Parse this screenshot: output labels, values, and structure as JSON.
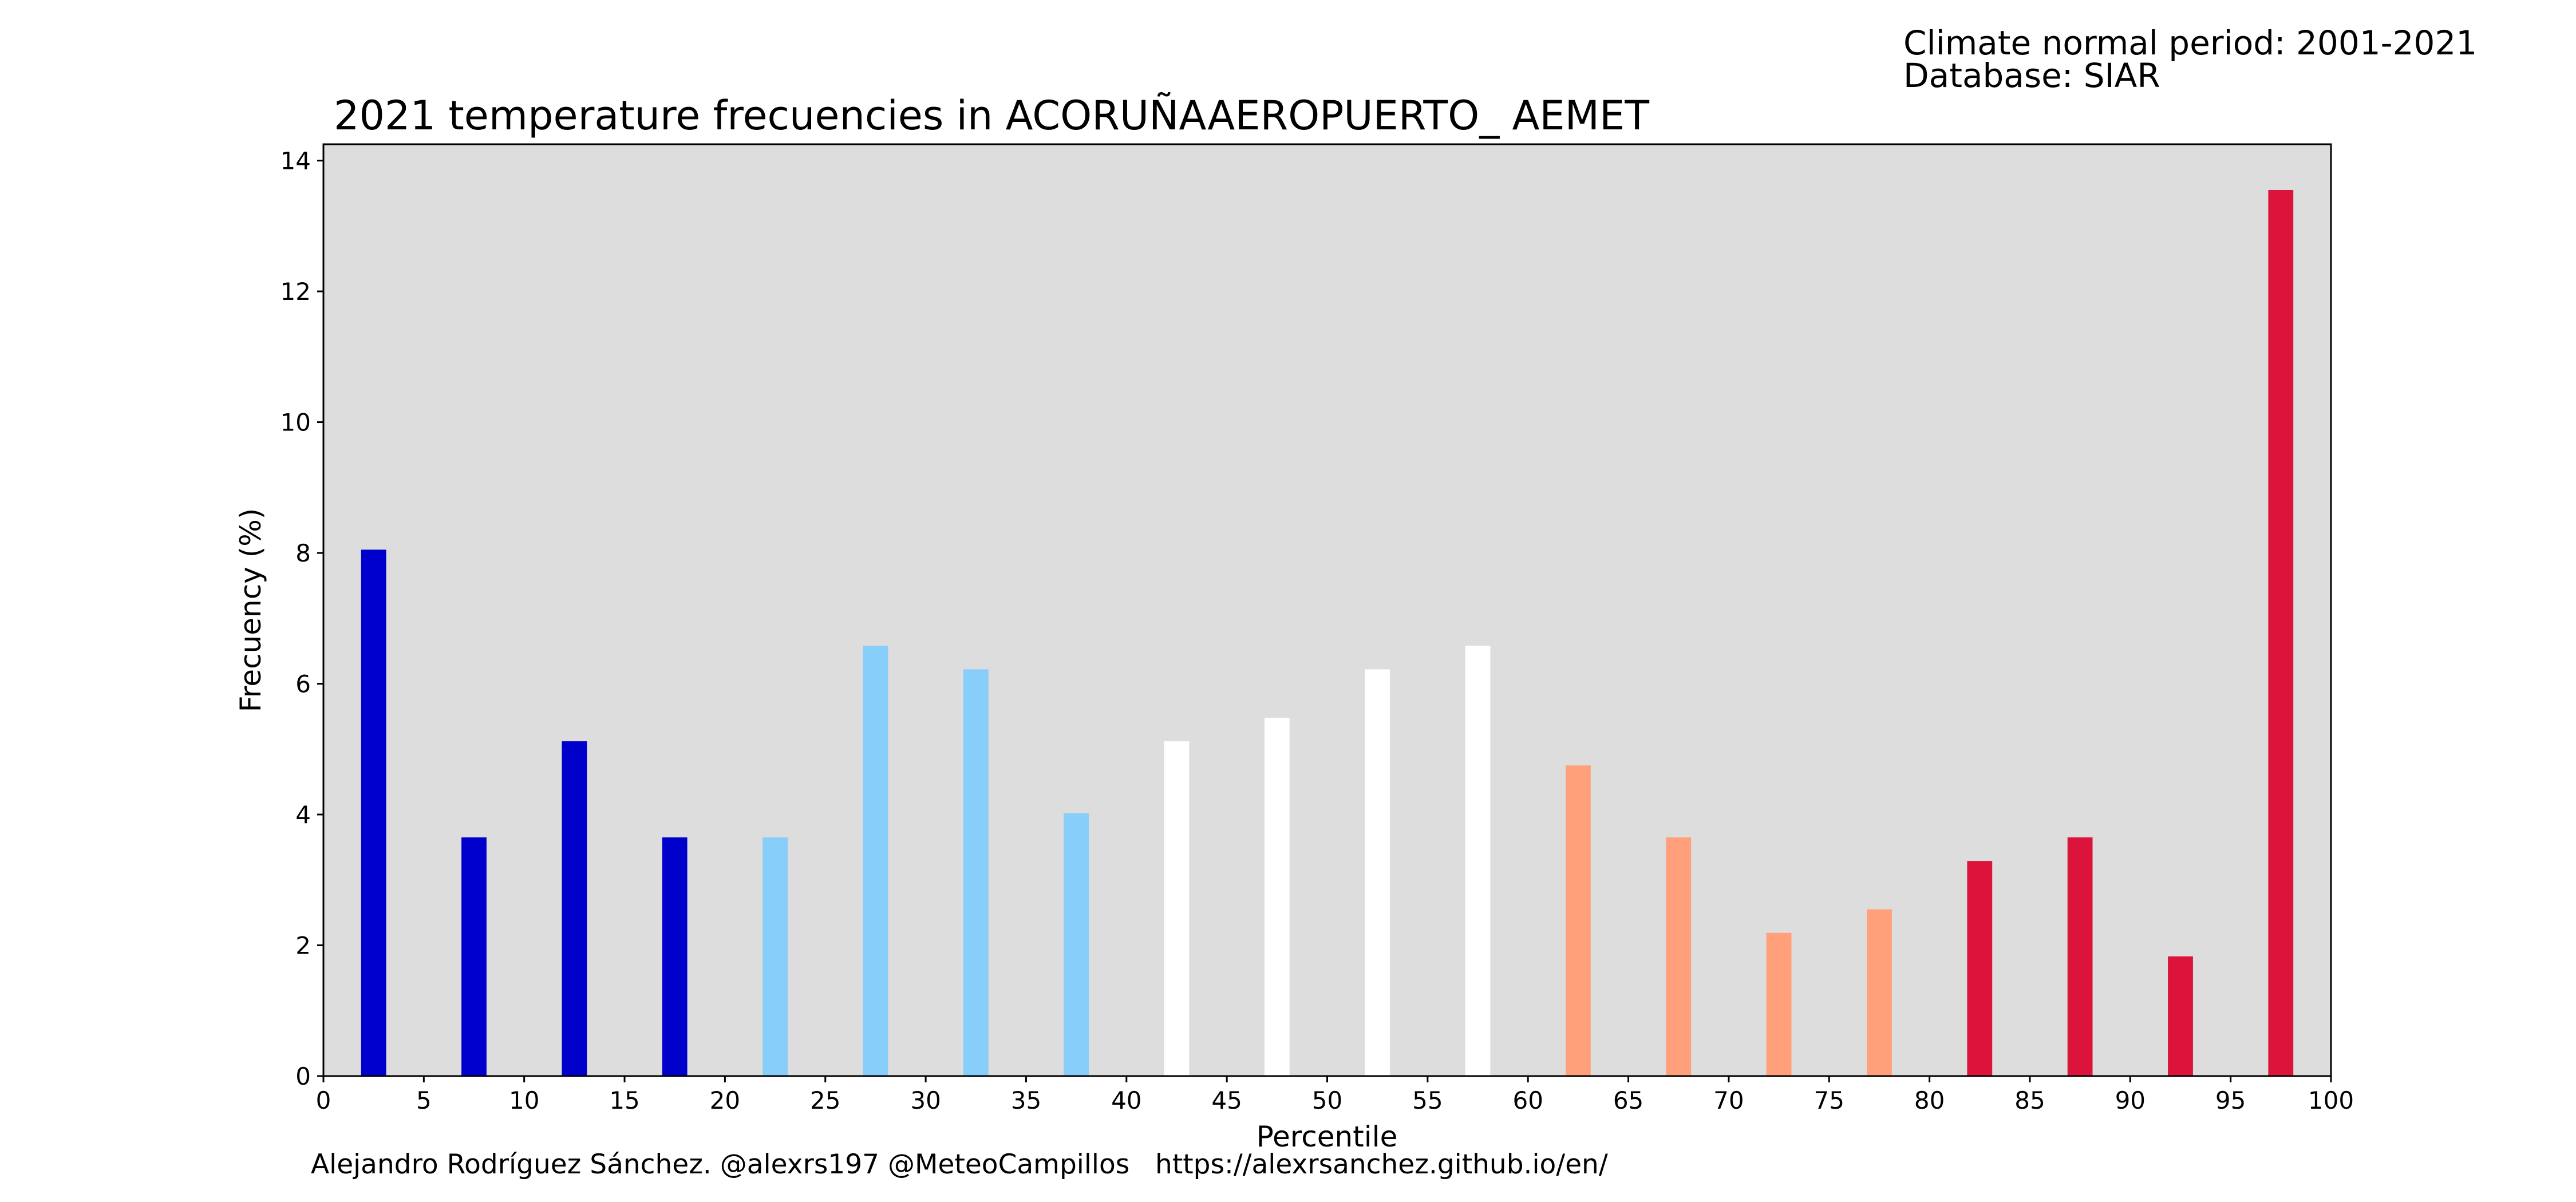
{
  "header": {
    "climate_period": "Climate normal period: 2001-2021",
    "database": "Database: SIAR"
  },
  "footer": {
    "credit": "Alejandro Rodríguez Sánchez. @alexrs197 @MeteoCampillos   https://alexrsanchez.github.io/en/"
  },
  "colors": {
    "plot_background": "#dddddd",
    "very_cold": "#0000cd",
    "cold": "#87cefa",
    "normal": "#ffffff",
    "warm": "#ffa07a",
    "very_warm": "#dc143c"
  },
  "chart_data": {
    "type": "bar",
    "title": "2021 temperature frecuencies in ACORUÑAAEROPUERTO_ AEMET",
    "xlabel": "Percentile",
    "ylabel": "Frecuency (%)",
    "xlim": [
      0,
      100
    ],
    "ylim": [
      0,
      14.25
    ],
    "xticks": [
      0,
      5,
      10,
      15,
      20,
      25,
      30,
      35,
      40,
      45,
      50,
      55,
      60,
      65,
      70,
      75,
      80,
      85,
      90,
      95,
      100
    ],
    "yticks": [
      0,
      2,
      4,
      6,
      8,
      10,
      12,
      14
    ],
    "grid": false,
    "legend": "none",
    "bar_width": 1.25,
    "x": [
      2.5,
      7.5,
      12.5,
      17.5,
      22.5,
      27.5,
      32.5,
      37.5,
      42.5,
      47.5,
      52.5,
      57.5,
      62.5,
      67.5,
      72.5,
      77.5,
      82.5,
      87.5,
      92.5,
      97.5
    ],
    "values": [
      8.05,
      3.65,
      5.12,
      3.65,
      3.65,
      6.58,
      6.22,
      4.02,
      5.12,
      5.48,
      6.22,
      6.58,
      4.75,
      3.65,
      2.19,
      2.55,
      3.29,
      3.65,
      1.83,
      13.55
    ],
    "bar_colors": [
      "#0000cd",
      "#0000cd",
      "#0000cd",
      "#0000cd",
      "#87cefa",
      "#87cefa",
      "#87cefa",
      "#87cefa",
      "#ffffff",
      "#ffffff",
      "#ffffff",
      "#ffffff",
      "#ffa07a",
      "#ffa07a",
      "#ffa07a",
      "#ffa07a",
      "#dc143c",
      "#dc143c",
      "#dc143c",
      "#dc143c"
    ]
  }
}
